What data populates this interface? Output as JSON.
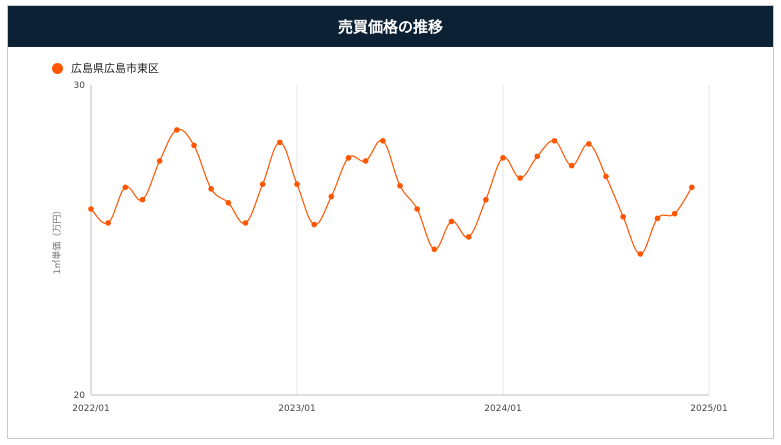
{
  "header": {
    "title": "売買価格の推移"
  },
  "legend": {
    "label": "広島県広島市東区",
    "color": "#ff5500"
  },
  "chart_data": {
    "type": "line",
    "title": "売買価格の推移",
    "ylabel": "1㎡単価（万円）",
    "xlabel": "",
    "ylim": [
      20,
      30
    ],
    "x_ticks": [
      "2022/01",
      "2023/01",
      "2024/01",
      "2025/01"
    ],
    "y_ticks": [
      20,
      30
    ],
    "grid": {
      "vertical": true,
      "horizontal": false
    },
    "legend_position": "top-left",
    "series": [
      {
        "name": "広島県広島市東区",
        "color": "#ff5500",
        "x": [
          "2022/01",
          "2022/02",
          "2022/03",
          "2022/04",
          "2022/05",
          "2022/06",
          "2022/07",
          "2022/08",
          "2022/09",
          "2022/10",
          "2022/11",
          "2022/12",
          "2023/01",
          "2023/02",
          "2023/03",
          "2023/04",
          "2023/05",
          "2023/06",
          "2023/07",
          "2023/08",
          "2023/09",
          "2023/10",
          "2023/11",
          "2023/12",
          "2024/01",
          "2024/02",
          "2024/03",
          "2024/04",
          "2024/05",
          "2024/06",
          "2024/07",
          "2024/08",
          "2024/09",
          "2024/10",
          "2024/11",
          "2024/12"
        ],
        "values": [
          26.0,
          25.55,
          26.7,
          26.3,
          27.55,
          28.55,
          28.05,
          26.65,
          26.2,
          25.55,
          26.8,
          28.15,
          26.8,
          25.5,
          26.4,
          27.65,
          27.55,
          28.2,
          26.75,
          26.0,
          24.7,
          25.6,
          25.1,
          26.3,
          27.65,
          27.0,
          27.7,
          28.2,
          27.4,
          28.1,
          27.05,
          25.75,
          24.55,
          25.7,
          25.85,
          26.7
        ]
      }
    ]
  }
}
